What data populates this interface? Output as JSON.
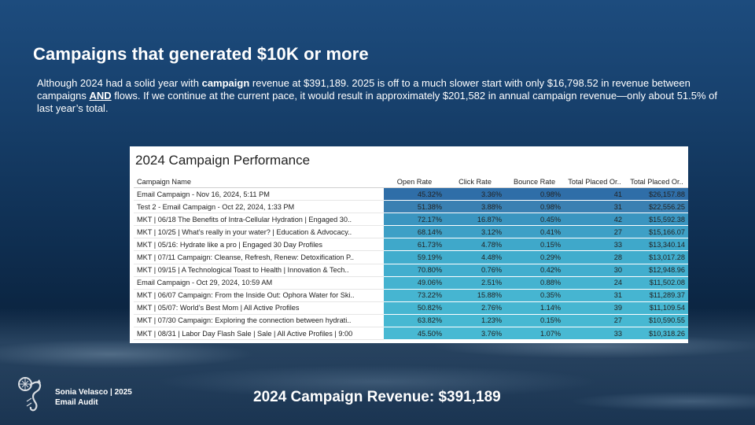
{
  "slide": {
    "title": "Campaigns that generated $10K or more",
    "intro": {
      "part1": "Although 2024 had a solid year with ",
      "campaign_word": "campaign",
      "part2": " revenue at $391,189. 2025 is off to a much slower start with only $16,798.52 in revenue between campaigns ",
      "and_word": "AND",
      "part3": " flows. If we continue at the current pace, it would result in approximately $201,582 in annual campaign revenue—only about 51.5% of last year’s total."
    }
  },
  "table": {
    "title": "2024 Campaign Performance",
    "columns": [
      "Campaign Name",
      "Open Rate",
      "Click Rate",
      "Bounce Rate",
      "Total Placed Or..",
      "Total Placed Or.."
    ],
    "rows": [
      {
        "name": "Email Campaign - Nov 16, 2024, 5:11 PM",
        "open": "45.32%",
        "click": "3.36%",
        "bounce": "0.98%",
        "orders": "41",
        "revenue": "$26,157.88",
        "color": "#2f6ea8"
      },
      {
        "name": "Test 2 - Email Campaign - Oct 22, 2024, 1:33 PM",
        "open": "51.38%",
        "click": "3.88%",
        "bounce": "0.98%",
        "orders": "31",
        "revenue": "$22,556.25",
        "color": "#3a80b2"
      },
      {
        "name": "MKT | 06/18 The Benefits of Intra-Cellular Hydration | Engaged 30..",
        "open": "72.17%",
        "click": "16.87%",
        "bounce": "0.45%",
        "orders": "42",
        "revenue": "$15,592.38",
        "color": "#3a95c0"
      },
      {
        "name": "MKT | 10/25 | What’s really in your water? | Education & Advocacy..",
        "open": "68.14%",
        "click": "3.12%",
        "bounce": "0.41%",
        "orders": "27",
        "revenue": "$15,166.07",
        "color": "#3ea0c6"
      },
      {
        "name": "MKT | 05/16: Hydrate like a pro | Engaged 30 Day Profiles",
        "open": "61.73%",
        "click": "4.78%",
        "bounce": "0.15%",
        "orders": "33",
        "revenue": "$13,340.14",
        "color": "#3fa8ca"
      },
      {
        "name": "MKT | 07/11 Campaign: Cleanse, Refresh, Renew: Detoxification P..",
        "open": "59.19%",
        "click": "4.48%",
        "bounce": "0.29%",
        "orders": "28",
        "revenue": "$13,017.28",
        "color": "#41adcd"
      },
      {
        "name": "MKT | 09/15 | A Technological Toast to Health | Innovation & Tech..",
        "open": "70.80%",
        "click": "0.76%",
        "bounce": "0.42%",
        "orders": "30",
        "revenue": "$12,948.96",
        "color": "#42aece"
      },
      {
        "name": "Email Campaign - Oct 29, 2024, 10:59 AM",
        "open": "49.06%",
        "click": "2.51%",
        "bounce": "0.88%",
        "orders": "24",
        "revenue": "$11,502.08",
        "color": "#45b3d0"
      },
      {
        "name": "MKT | 06/07 Campaign: From the Inside Out: Ophora Water for Ski..",
        "open": "73.22%",
        "click": "15.88%",
        "bounce": "0.35%",
        "orders": "31",
        "revenue": "$11,289.37",
        "color": "#46b5d1"
      },
      {
        "name": "MKT | 05/07: World’s Best Mom | All Active Profiles",
        "open": "50.82%",
        "click": "2.76%",
        "bounce": "1.14%",
        "orders": "39",
        "revenue": "$11,109.54",
        "color": "#46b6d1"
      },
      {
        "name": "MKT | 07/30 Campaign: Exploring the connection between hydrati..",
        "open": "63.82%",
        "click": "1.23%",
        "bounce": "0.15%",
        "orders": "27",
        "revenue": "$10,590.55",
        "color": "#47b8d2"
      },
      {
        "name": "MKT | 08/31 | Labor Day Flash Sale | Sale | All Active Profiles | 9:00",
        "open": "45.50%",
        "click": "3.76%",
        "bounce": "1.07%",
        "orders": "33",
        "revenue": "$10,318.26",
        "color": "#48b9d3"
      }
    ]
  },
  "footer": {
    "brand_line1": "Sonia Velasco | 2025",
    "brand_line2": "Email Audit",
    "logo_icon": "seahorse-logo-icon",
    "revenue_text": "2024 Campaign Revenue: $391,189"
  }
}
